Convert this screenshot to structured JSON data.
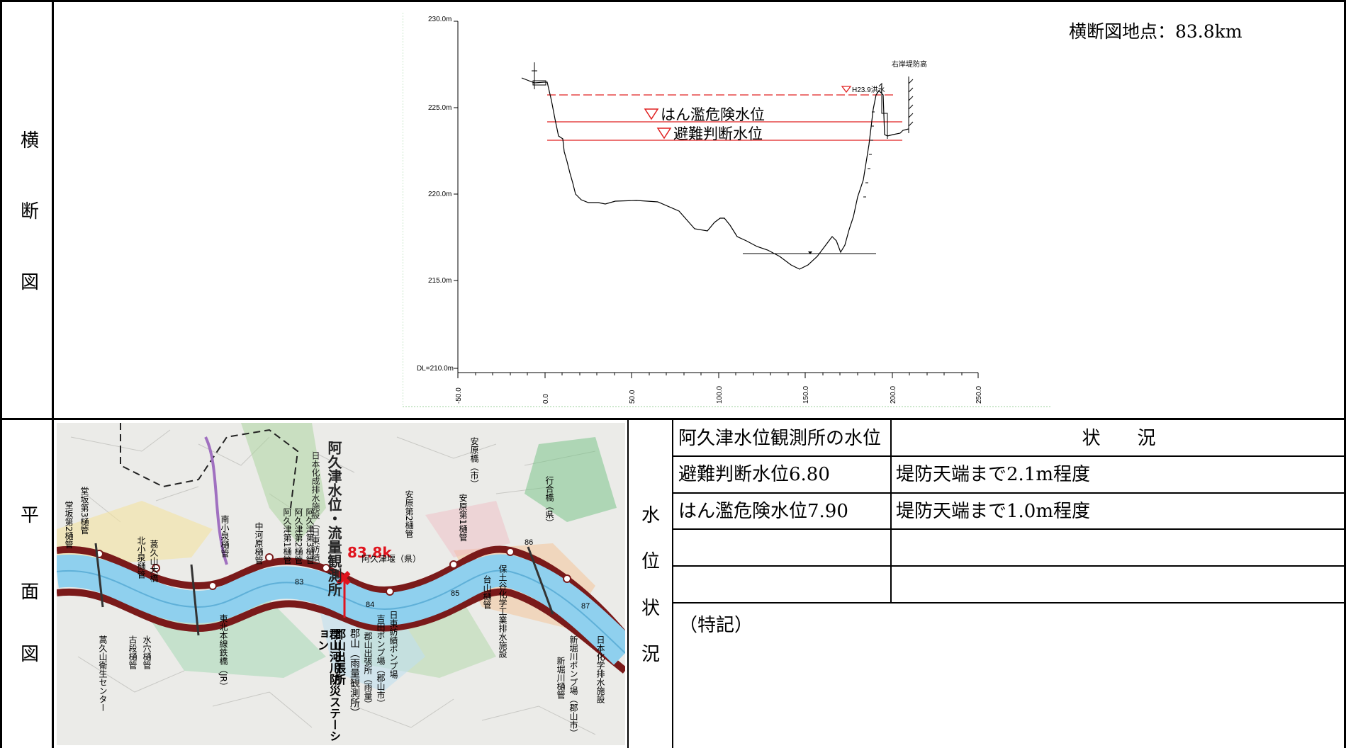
{
  "side_labels": {
    "cross": [
      "横",
      "断",
      "図"
    ],
    "plan": [
      "平",
      "面",
      "図"
    ],
    "water": [
      "水",
      "位",
      "状",
      "況"
    ]
  },
  "cross_section": {
    "location_label": "横断図地点：83.8km",
    "y_ticks": [
      "230.0m",
      "225.0m",
      "220.0m",
      "215.0m",
      "DL=210.0m"
    ],
    "x_ticks": [
      "-50.0",
      "0.0",
      "50.0",
      "100.0",
      "150.0",
      "200.0",
      "250.0"
    ],
    "labels": {
      "right_bank": "右岸堤防高",
      "flood": "H23.9洪水",
      "danger_level": "はん濫危険水位",
      "evac_level": "避難判断水位"
    },
    "colors": {
      "water_lines": "#e02020",
      "ground": "#000000"
    }
  },
  "water_table": {
    "header": [
      "阿久津水位観測所の水位",
      "状　　況"
    ],
    "rows": [
      [
        "避難判断水位6.80",
        "堤防天端まで2.1m程度"
      ],
      [
        "はん濫危険水位7.90",
        "堤防天端まで1.0m程度"
      ],
      [
        "",
        ""
      ],
      [
        "",
        ""
      ]
    ],
    "note": "（特記）"
  },
  "map": {
    "marker_label": "83.8k",
    "title_lines": [
      "阿久津水位・流量観測所",
      "日本化成排水施設（日東紡績）"
    ],
    "labels": [
      "堂坂第2樋管",
      "堂坂第3樋管",
      "北小泉樋管",
      "蒿久山大橋",
      "南小泉樋管",
      "中河原樋管",
      "阿久津第1樋管",
      "阿久津第2樋管",
      "阿久津第3樋管",
      "安原第2樋管",
      "安原第1樋管",
      "安原橋（市）",
      "阿久津堰（県）",
      "台山樋管",
      "行合橋（県）",
      "新堀川樋管",
      "水穴樋管",
      "古段樋管",
      "郡山出張所",
      "郡山河川防災ステーション",
      "郡山（雨量観測所）",
      "郡山出張所（雨量）",
      "吉田ポンプ場（郡山市）",
      "日東紡績ポンプ場",
      "東北本線鉄橋（JR）",
      "蒿久山衛生センター",
      "新堀川ポンプ場（郡山市）",
      "日本化学排水施設",
      "保土谷化学工業排水施設"
    ],
    "km_marks": [
      "83",
      "84",
      "85",
      "86",
      "87"
    ],
    "colors": {
      "river": "#8fd0ee",
      "embankment": "#7a1a1a",
      "marker": "#e0141e"
    }
  }
}
